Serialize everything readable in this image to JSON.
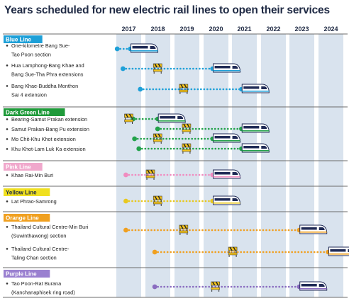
{
  "title": "Years scheduled for new electric rail lines to open their services",
  "chart_data": {
    "type": "timeline",
    "years": [
      "2017",
      "2018",
      "2019",
      "2020",
      "2021",
      "2022",
      "2023",
      "2024"
    ],
    "groups": [
      {
        "name": "Blue Line",
        "color": "#1ea0d8",
        "header_color": "#1ea0d8",
        "header_text_color": "#ffffff",
        "rows": [
          {
            "label": [
              "One-kilometre Bang Sue-",
              "Tao Poon section"
            ],
            "start": 2016.6,
            "end": 2017.05,
            "works": null
          },
          {
            "label": [
              "Hua Lamphong-Bang Khae and",
              "Bang Sue-Tha Phra extensions"
            ],
            "start": 2016.8,
            "end": 2019.9,
            "works": 2018.0
          },
          {
            "label": [
              "Bang Khae-Buddha Monthon",
              "Sai 4 extension"
            ],
            "start": 2017.4,
            "end": 2020.9,
            "works": 2018.9
          }
        ]
      },
      {
        "name": "Dark Green Line",
        "color": "#22a24a",
        "header_color": "#1f9a3a",
        "header_text_color": "#ffffff",
        "rows": [
          {
            "label": [
              "Bearing-Samut Prakan extension"
            ],
            "start": 2017.15,
            "end": 2018.0,
            "works": 2017.0
          },
          {
            "label": [
              "Samut Prakan-Bang Pu extension"
            ],
            "start": 2018.0,
            "end": 2020.9,
            "works": 2019.0
          },
          {
            "label": [
              "Mo Chit-Khu Khot extension"
            ],
            "start": 2017.2,
            "end": 2019.9,
            "works": 2018.0
          },
          {
            "label": [
              "Khu Khot-Lam Luk Ka extension"
            ],
            "start": 2017.35,
            "end": 2020.9,
            "works": 2019.0
          }
        ]
      },
      {
        "name": "Pink Line",
        "color": "#f08cc0",
        "header_color": "#f0a8cc",
        "header_text_color": "#ffffff",
        "rows": [
          {
            "label": [
              "Khae Rai-Min Buri"
            ],
            "start": 2016.9,
            "end": 2019.9,
            "works": 2017.75
          }
        ]
      },
      {
        "name": "Yellow Line",
        "color": "#e8c81e",
        "header_color": "#f0e020",
        "header_text_color": "#1f2a44",
        "rows": [
          {
            "label": [
              "Lat Phrao-Samrong"
            ],
            "start": 2016.9,
            "end": 2019.9,
            "works": 2018.0
          }
        ]
      },
      {
        "name": "Orange Line",
        "color": "#f0a020",
        "header_color": "#f0a020",
        "header_text_color": "#ffffff",
        "rows": [
          {
            "label": [
              "Thailand Cultural Centre-Min Buri",
              "(Suwinthawong) section"
            ],
            "start": 2016.9,
            "end": 2022.9,
            "works": 2018.9
          },
          {
            "label": [
              "Thailand Cultural Centre-",
              "Taling Chan section"
            ],
            "start": 2017.9,
            "end": 2023.9,
            "works": 2020.6
          }
        ]
      },
      {
        "name": "Purple Line",
        "color": "#8a6cc0",
        "header_color": "#9a80d0",
        "header_text_color": "#ffffff",
        "rows": [
          {
            "label": [
              "Tao Poon-Rat Burana",
              "(Kanchanaphisek ring road)"
            ],
            "start": 2017.9,
            "end": 2022.9,
            "works": 2020.0
          }
        ]
      }
    ]
  }
}
